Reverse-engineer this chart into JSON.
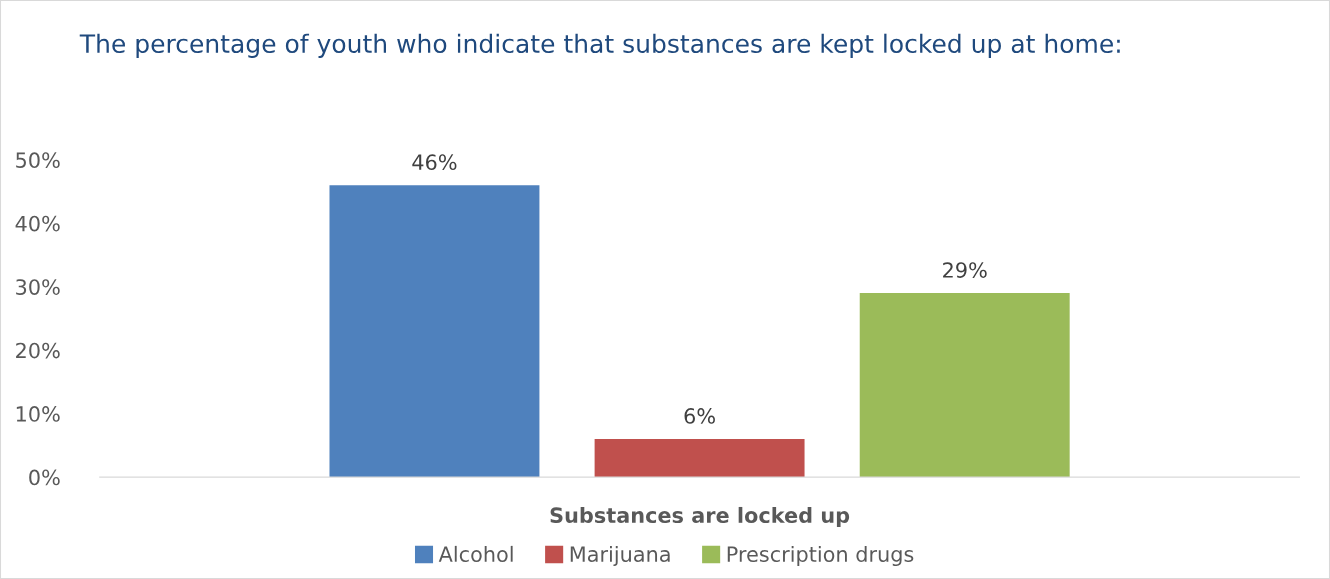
{
  "chart_data": {
    "type": "bar",
    "title": "The percentage of youth who indicate that substances are kept locked up at home:",
    "xlabel": "Substances are locked up",
    "categories": [
      null
    ],
    "series": [
      {
        "name": "Alcohol",
        "color": "#4f81bd",
        "values": [
          46
        ]
      },
      {
        "name": "Marijuana",
        "color": "#c0504d",
        "values": [
          6
        ]
      },
      {
        "name": "Prescription drugs",
        "color": "#9bbb59",
        "values": [
          29
        ]
      }
    ],
    "ylim": [
      0,
      50
    ],
    "yticks": [
      {
        "value": 0,
        "label": "0%"
      },
      {
        "value": 10,
        "label": "10%"
      },
      {
        "value": 20,
        "label": "20%"
      },
      {
        "value": 30,
        "label": "30%"
      },
      {
        "value": 40,
        "label": "40%"
      },
      {
        "value": 50,
        "label": "50%"
      }
    ],
    "value_labels": [
      "46%",
      "6%",
      "29%"
    ],
    "grid": false,
    "legend": "bottom"
  }
}
